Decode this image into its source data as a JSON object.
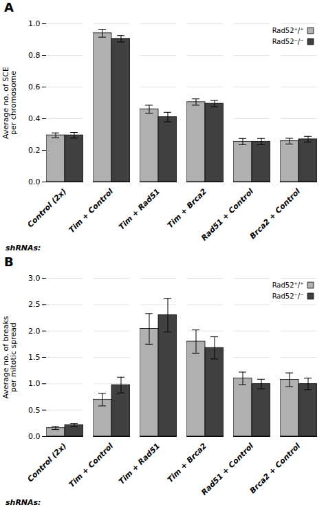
{
  "chart_data": [
    {
      "type": "bar",
      "title": "A",
      "ylabel": "Average no. of SCE\nper chromosome",
      "xlabel": "shRNAs:",
      "categories": [
        "Control (2x)",
        "Tim + Control",
        "Tim + Rad51",
        "Tim + Brca2",
        "Rad51 + Control",
        "Brca2 + Control"
      ],
      "series": [
        {
          "name": "Rad52⁺/⁺",
          "color": "#b0b0b0",
          "values": [
            0.295,
            0.94,
            0.46,
            0.505,
            0.255,
            0.258
          ],
          "errors": [
            0.015,
            0.025,
            0.025,
            0.02,
            0.02,
            0.018
          ]
        },
        {
          "name": "Rad52⁻/⁻",
          "color": "#404040",
          "values": [
            0.295,
            0.905,
            0.41,
            0.495,
            0.255,
            0.27
          ],
          "errors": [
            0.018,
            0.02,
            0.03,
            0.02,
            0.02,
            0.018
          ]
        }
      ],
      "ylim": [
        0,
        1.0
      ],
      "yticks": [
        {
          "value": 0,
          "label": "0.0"
        },
        0.2,
        0.4,
        0.6,
        0.8,
        {
          "value": 1,
          "label": "1.0"
        }
      ],
      "grid": true,
      "legend": "upper right"
    },
    {
      "type": "bar",
      "title": "B",
      "ylabel": "Average no. of breaks\nper mitotic spread",
      "xlabel": "shRNAs:",
      "categories": [
        "Control (2x)",
        "Tim + Control",
        "Tim + Rad51",
        "Tim + Brca2",
        "Rad51 + Control",
        "Brca2 + Control"
      ],
      "series": [
        {
          "name": "Rad52⁺/⁺",
          "color": "#b0b0b0",
          "values": [
            0.16,
            0.7,
            2.04,
            1.8,
            1.1,
            1.075
          ],
          "errors": [
            0.03,
            0.12,
            0.29,
            0.22,
            0.12,
            0.13
          ]
        },
        {
          "name": "Rad52⁻/⁻",
          "color": "#404040",
          "values": [
            0.215,
            0.975,
            2.3,
            1.68,
            0.995,
            0.995
          ],
          "errors": [
            0.03,
            0.15,
            0.32,
            0.21,
            0.09,
            0.11
          ]
        }
      ],
      "ylim": [
        0,
        3.0
      ],
      "yticks": [
        {
          "value": 0,
          "label": "0.0"
        },
        0.5,
        {
          "value": 1,
          "label": "1.0"
        },
        1.5,
        {
          "value": 2,
          "label": "2.0"
        },
        2.5,
        {
          "value": 3,
          "label": "3.0"
        }
      ],
      "grid": true,
      "legend": "upper right"
    }
  ]
}
